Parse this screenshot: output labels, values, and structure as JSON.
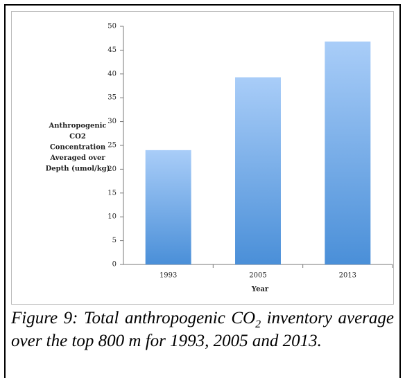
{
  "chart_data": {
    "type": "bar",
    "ylabel": [
      "Anthropogenic",
      "CO2",
      "Concentration",
      "Averaged over",
      "Depth (umol/kg)"
    ],
    "xlabel": "Year",
    "categories": [
      "1993",
      "2005",
      "2013"
    ],
    "values": [
      24,
      39.3,
      46.8
    ],
    "color": [
      "#a9cdf8",
      "#4a8fd8"
    ],
    "ylim": [
      0,
      50
    ],
    "yticks": [
      0,
      5,
      10,
      15,
      20,
      25,
      30,
      35,
      40,
      45,
      50
    ],
    "grid": false
  },
  "caption": {
    "before": "Figure 9: Total anthropogenic CO",
    "sub": "2",
    "after": " inventory average over the top 800 m for 1993, 2005 and 2013."
  }
}
